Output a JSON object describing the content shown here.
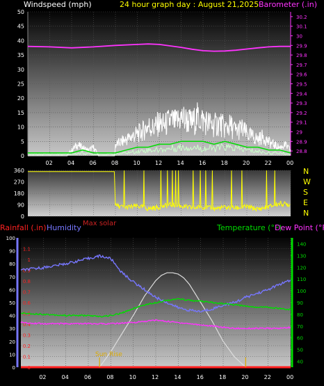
{
  "chart_data": [
    {
      "type": "line",
      "title": "24 hour graph day : August 21,2025",
      "left_axis_label": "Windspeed (mph)",
      "right_axis_label": "Barometer (.in)",
      "x_ticks": [
        "02",
        "04",
        "06",
        "08",
        "10",
        "12",
        "14",
        "16",
        "18",
        "20",
        "22",
        "00"
      ],
      "left_ticks": [
        0,
        5,
        10,
        15,
        20,
        25,
        30,
        35,
        40,
        45,
        50
      ],
      "right_ticks": [
        "28.8",
        "28.9",
        "29",
        "29.1",
        "29.2",
        "29.3",
        "29.4",
        "29.5",
        "29.6",
        "29.7",
        "29.8",
        "29.9",
        "30",
        "30.1",
        "30.2"
      ],
      "xlim": [
        0,
        24
      ],
      "ylim_left": [
        0,
        50
      ],
      "ylim_right": [
        28.75,
        30.25
      ],
      "colors": {
        "wind": "#ffffff",
        "gust_avg": "#00dd00",
        "wind_avg": "#ccffcc",
        "barometer": "#ff33ff",
        "title": "#ffff00"
      },
      "series": [
        {
          "key": "barometer",
          "axis": "right",
          "x": [
            0,
            2,
            4,
            6,
            8,
            10,
            11,
            12,
            13,
            14,
            15,
            16,
            17,
            18,
            19,
            20,
            21,
            22,
            23,
            24
          ],
          "values": [
            29.89,
            29.885,
            29.875,
            29.885,
            29.9,
            29.91,
            29.915,
            29.91,
            29.895,
            29.88,
            29.86,
            29.845,
            29.84,
            29.842,
            29.85,
            29.862,
            29.875,
            29.885,
            29.89,
            29.89
          ]
        },
        {
          "key": "wind",
          "axis": "left",
          "x": [
            0,
            2,
            3,
            3.5,
            4,
            4.5,
            5,
            5.5,
            6,
            6.5,
            7,
            7.5,
            7.95,
            8,
            8.5,
            9,
            9.5,
            10,
            10.5,
            11,
            11.5,
            12,
            12.5,
            13,
            13.5,
            14,
            14.5,
            15,
            15.5,
            16,
            16.5,
            17,
            17.5,
            18,
            18.5,
            19,
            19.5,
            20,
            20.5,
            21,
            21.5,
            22,
            22.5,
            23,
            23.5,
            24
          ],
          "values": [
            0,
            0,
            0,
            0,
            2,
            4,
            3,
            2,
            3,
            0,
            0,
            0,
            0,
            4,
            5,
            6,
            7,
            8,
            9,
            11,
            10,
            12,
            11,
            13,
            12,
            14,
            13,
            12,
            14,
            13,
            12,
            11,
            12,
            10,
            11,
            9,
            10,
            8,
            7,
            6,
            7,
            5,
            4,
            3,
            4,
            2
          ]
        },
        {
          "key": "gust_avg",
          "axis": "left",
          "x": [
            0,
            4,
            5,
            6,
            7,
            8,
            9,
            10,
            11,
            12,
            13,
            14,
            15,
            16,
            17,
            18,
            19,
            20,
            21,
            22,
            23,
            24
          ],
          "values": [
            1,
            1,
            2,
            1,
            1,
            1,
            2,
            3,
            3,
            4,
            4,
            5,
            5,
            5,
            4,
            5,
            4,
            3,
            3,
            2,
            2,
            1
          ]
        },
        {
          "key": "wind_avg",
          "axis": "left",
          "x": [
            0,
            4,
            5,
            6,
            7,
            8,
            9,
            10,
            11,
            12,
            13,
            14,
            15,
            16,
            17,
            18,
            19,
            20,
            21,
            22,
            23,
            24
          ],
          "values": [
            0.5,
            0.5,
            1,
            0.5,
            0.5,
            0.5,
            1,
            1.5,
            2,
            2,
            2.5,
            3,
            3,
            2.5,
            2.5,
            3,
            2.5,
            2,
            1.5,
            1,
            1,
            0.5
          ]
        }
      ]
    },
    {
      "type": "line",
      "left_ticks": [
        0,
        90,
        180,
        270,
        360
      ],
      "right_labels": [
        "N",
        "W",
        "S",
        "E",
        "N"
      ],
      "x_ticks": [
        "02",
        "04",
        "06",
        "08",
        "10",
        "12",
        "14",
        "16",
        "18",
        "20",
        "22",
        "00"
      ],
      "xlim": [
        0,
        24
      ],
      "ylim": [
        0,
        360
      ],
      "colors": {
        "direction": "#ffff00",
        "labels": "#ffff00"
      },
      "series": [
        {
          "key": "direction",
          "x": [
            0,
            2,
            4,
            6,
            7.9,
            8,
            8.5,
            9,
            10,
            11,
            12,
            13,
            14,
            15,
            16,
            17,
            18,
            19,
            20,
            21,
            22,
            23,
            24
          ],
          "values": [
            350,
            350,
            350,
            350,
            350,
            85,
            75,
            70,
            80,
            60,
            70,
            90,
            80,
            65,
            75,
            60,
            70,
            65,
            75,
            55,
            75,
            100,
            90
          ]
        }
      ]
    },
    {
      "type": "line",
      "rain_label": "Rainfall (.in)",
      "humidity_label": "Humidity",
      "maxsolar_label": "Max solar",
      "temp_label": "Temperature (°F)",
      "dew_label": "Dew Point (°F)",
      "sunrise_label": "Sun Rise",
      "x_ticks": [
        "02",
        "04",
        "06",
        "08",
        "10",
        "12",
        "14",
        "16",
        "18",
        "20",
        "22",
        "00"
      ],
      "humidity_ticks": [
        0,
        10,
        20,
        30,
        40,
        50,
        60,
        70,
        80,
        90,
        100
      ],
      "rain_ticks": [
        "0",
        "0.1",
        "0.2",
        "0.3",
        "0.4",
        "0.5",
        "0.6",
        "0.7",
        "0.8",
        "0.9",
        "1",
        "1.1"
      ],
      "temp_ticks": [
        40,
        50,
        60,
        70,
        80,
        90,
        100,
        110,
        120,
        130,
        140
      ],
      "xlim": [
        0,
        24
      ],
      "ylim_humidity": [
        0,
        100
      ],
      "ylim_rain": [
        0,
        1.2
      ],
      "ylim_temp": [
        35,
        145
      ],
      "colors": {
        "rain": "#ff2222",
        "humidity": "#7777ff",
        "maxsolar": "#cc2222",
        "temp": "#00dd00",
        "dew": "#ff33ff",
        "solar": "#dddddd",
        "sunrise": "#ddaa00"
      },
      "series": [
        {
          "key": "humidity",
          "axis": "humidity",
          "x": [
            0,
            2,
            4,
            5,
            6,
            7,
            8,
            9,
            10,
            11,
            12,
            13,
            14,
            15,
            16,
            17,
            18,
            19,
            20,
            21,
            22,
            23,
            24
          ],
          "values": [
            75,
            77,
            80,
            82,
            84,
            86,
            84,
            73,
            66,
            60,
            54,
            50,
            46,
            44,
            43,
            45,
            48,
            50,
            54,
            57,
            60,
            64,
            67
          ]
        },
        {
          "key": "temp",
          "axis": "temp",
          "x": [
            0,
            2,
            4,
            6,
            7,
            8,
            9,
            10,
            11,
            12,
            13,
            14,
            15,
            16,
            17,
            18,
            19,
            20,
            21,
            22,
            23,
            24
          ],
          "values": [
            81,
            80,
            79,
            79,
            78,
            79,
            81,
            85,
            88,
            90,
            92,
            93,
            92,
            91,
            90,
            89,
            88,
            87,
            86,
            86,
            85,
            84
          ]
        },
        {
          "key": "dew",
          "axis": "temp",
          "x": [
            0,
            2,
            4,
            6,
            8,
            10,
            11,
            12,
            13,
            14,
            15,
            16,
            17,
            18,
            19,
            20,
            21,
            22,
            23,
            24
          ],
          "values": [
            73,
            72,
            72,
            72,
            72,
            73,
            74,
            75,
            74,
            73,
            72,
            71,
            70,
            69,
            68,
            68,
            68,
            68,
            68,
            69
          ]
        },
        {
          "key": "solar",
          "axis": "humidity",
          "x": [
            7,
            8,
            9,
            10,
            11,
            12,
            12.5,
            13,
            13.5,
            14,
            14.5,
            15,
            16,
            17,
            18,
            19,
            20
          ],
          "values": [
            0,
            12,
            26,
            40,
            55,
            67,
            71,
            73,
            73,
            72,
            69,
            64,
            50,
            36,
            20,
            8,
            0
          ]
        },
        {
          "key": "rain",
          "axis": "rain",
          "x": [
            0,
            24
          ],
          "values": [
            0,
            0
          ]
        }
      ]
    }
  ]
}
